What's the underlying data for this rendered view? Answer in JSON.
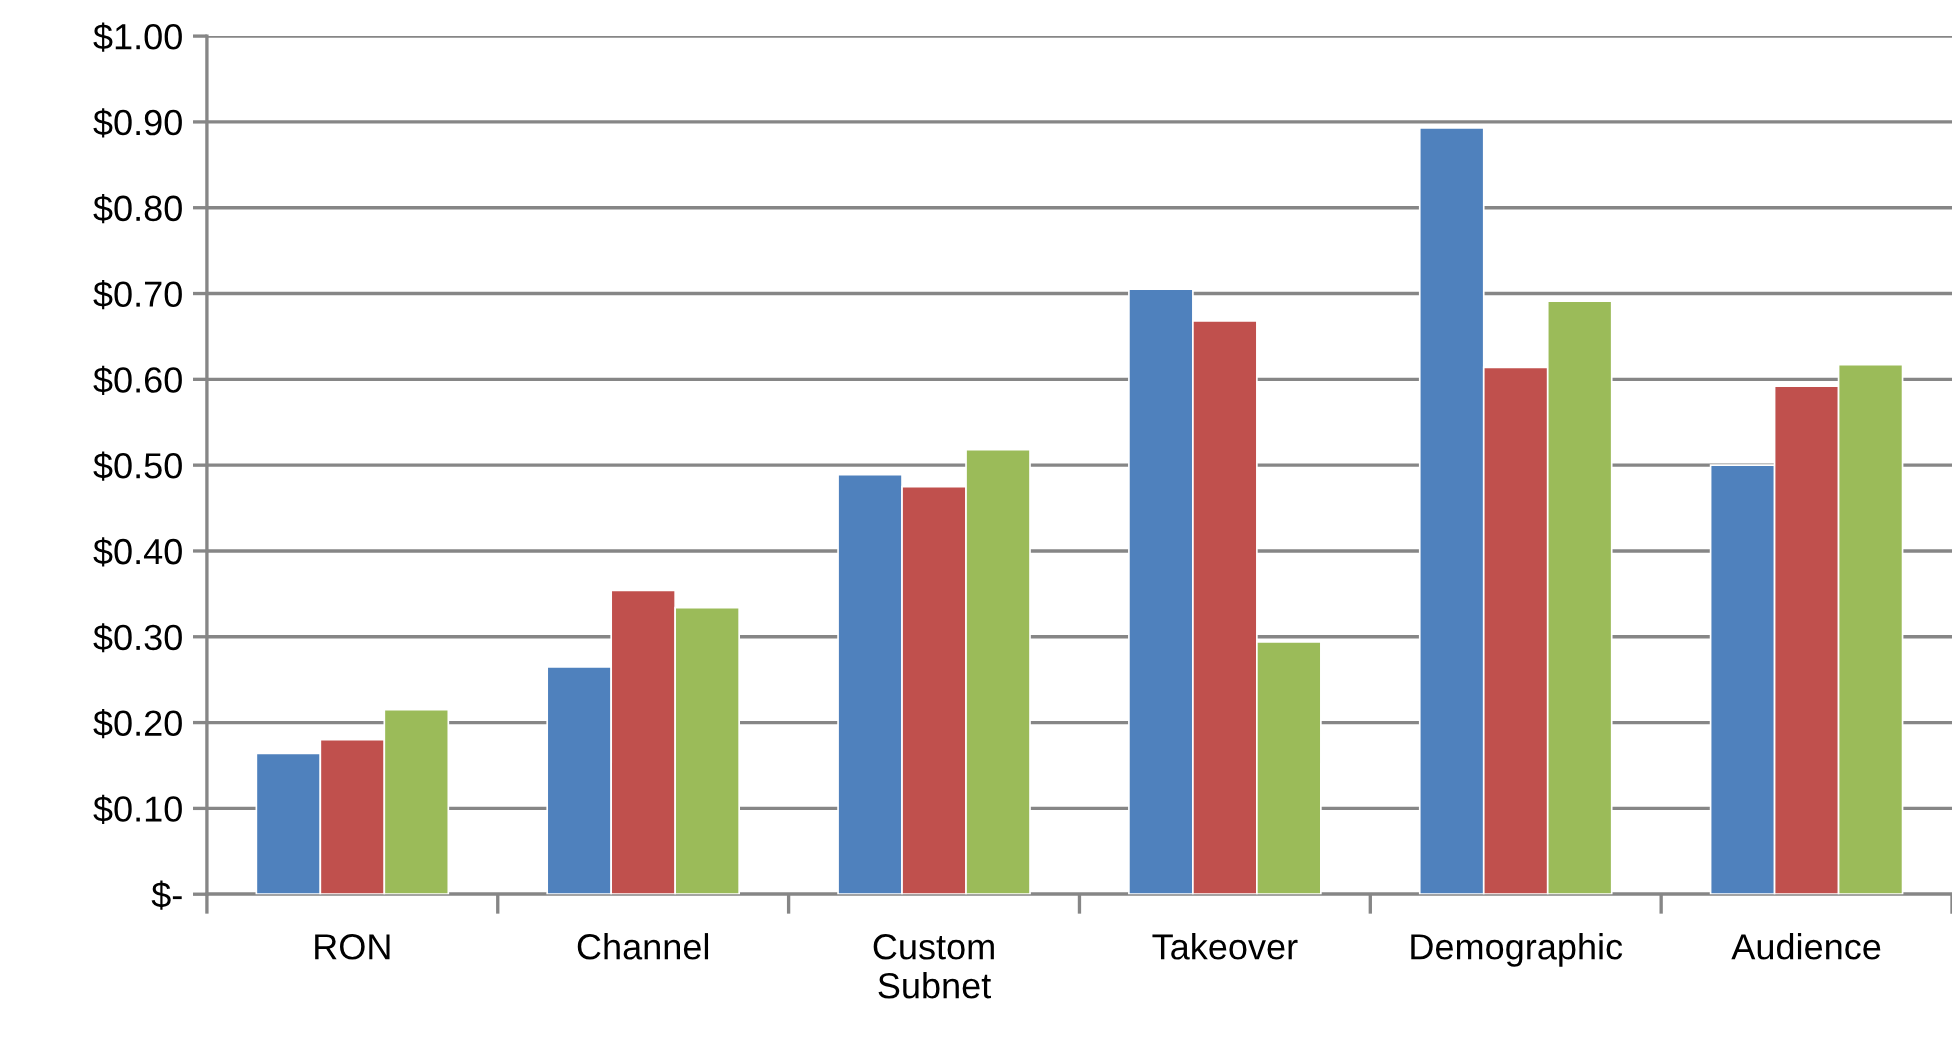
{
  "chart_data": {
    "type": "bar",
    "categories": [
      "RON",
      "Channel",
      "Custom\nSubnet",
      "Takeover",
      "Demographic",
      "Audience"
    ],
    "series": [
      {
        "color": "#4f81bd",
        "values": [
          0.164,
          0.265,
          0.489,
          0.705,
          0.893,
          0.5
        ]
      },
      {
        "color": "#c0504d",
        "values": [
          0.18,
          0.354,
          0.475,
          0.668,
          0.614,
          0.592
        ]
      },
      {
        "color": "#9bbb59",
        "values": [
          0.215,
          0.334,
          0.518,
          0.294,
          0.691,
          0.617
        ]
      }
    ],
    "ylim": [
      0,
      1
    ],
    "yticks": [
      {
        "value": 0,
        "label": "$-"
      },
      {
        "value": 0.1,
        "label": "$0.10"
      },
      {
        "value": 0.2,
        "label": "$0.20"
      },
      {
        "value": 0.3,
        "label": "$0.30"
      },
      {
        "value": 0.4,
        "label": "$0.40"
      },
      {
        "value": 0.5,
        "label": "$0.50"
      },
      {
        "value": 0.6,
        "label": "$0.60"
      },
      {
        "value": 0.7,
        "label": "$0.70"
      },
      {
        "value": 0.8,
        "label": "$0.80"
      },
      {
        "value": 0.9,
        "label": "$0.90"
      },
      {
        "value": 1,
        "label": "$1.00"
      }
    ],
    "grid": "y"
  }
}
